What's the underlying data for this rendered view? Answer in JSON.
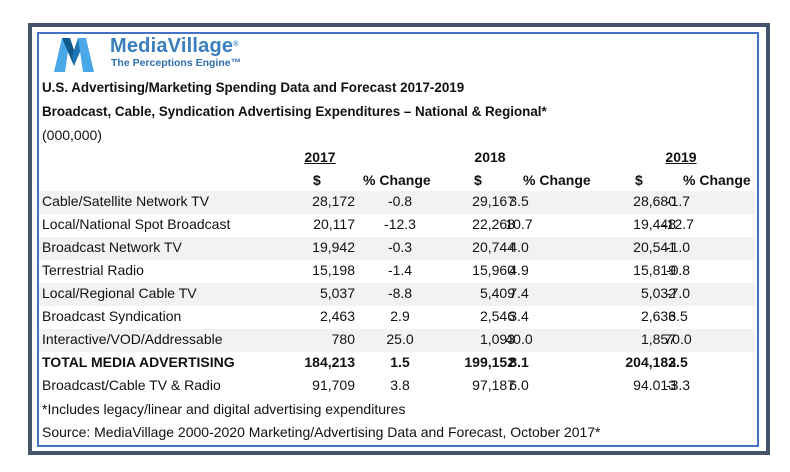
{
  "logo": {
    "brand": "MediaVillage",
    "registered_mark": "®",
    "tagline": "The Perceptions Engine™",
    "colors": {
      "light": "#4aa8e8",
      "dark": "#0e5a8c",
      "text": "#3a7fbd"
    }
  },
  "title_line1": "U.S. Advertising/Marketing Spending Data and Forecast 2017-2019",
  "title_line2": "Broadcast, Cable, Syndication Advertising Expenditures – National & Regional*",
  "units": "(000,000)",
  "years": [
    {
      "label": "2017",
      "underlined": true
    },
    {
      "label": "2018",
      "underlined": false
    },
    {
      "label": "2019",
      "underlined": true
    }
  ],
  "column_headers": {
    "dollars": "$",
    "pct_change": "% Change"
  },
  "rows": [
    {
      "label": "Cable/Satellite Network TV",
      "v2017": "28,172",
      "p2017": "-0.8",
      "v2018": "29,167",
      "p2018": "3.5",
      "v2019": "28,680",
      "p2019": "-1.7",
      "bold": false,
      "banded": true
    },
    {
      "label": "Local/National Spot Broadcast",
      "v2017": "20,117",
      "p2017": "-12.3",
      "v2018": "22,268",
      "p2018": "10.7",
      "v2019": "19,448",
      "p2019": "-12.7",
      "bold": false,
      "banded": false
    },
    {
      "label": "Broadcast Network TV",
      "v2017": "19,942",
      "p2017": "-0.3",
      "v2018": "20,744",
      "p2018": "4.0",
      "v2019": "20,541",
      "p2019": "-1.0",
      "bold": false,
      "banded": true
    },
    {
      "label": "Terrestrial Radio",
      "v2017": "15,198",
      "p2017": "-1.4",
      "v2018": "15,960",
      "p2018": "4.9",
      "v2019": "15,819",
      "p2019": "-0.8",
      "bold": false,
      "banded": false
    },
    {
      "label": "Local/Regional Cable TV",
      "v2017": "5,037",
      "p2017": "-8.8",
      "v2018": "5,409",
      "p2018": "7.4",
      "v2019": "5,032",
      "p2019": "-7.0",
      "bold": false,
      "banded": true
    },
    {
      "label": "Broadcast Syndication",
      "v2017": "2,463",
      "p2017": "2.9",
      "v2018": "2,546",
      "p2018": "3.4",
      "v2019": "2,636",
      "p2019": "3.5",
      "bold": false,
      "banded": false
    },
    {
      "label": "Interactive/VOD/Addressable",
      "v2017": "780",
      "p2017": "25.0",
      "v2018": "1,093",
      "p2018": "40.0",
      "v2019": "1,857",
      "p2019": "70.0",
      "bold": false,
      "banded": true
    },
    {
      "label": "TOTAL MEDIA ADVERTISING",
      "v2017": "184,213",
      "p2017": "1.5",
      "v2018": "199,152",
      "p2018": "8.1",
      "v2019": "204,183",
      "p2019": "2.5",
      "bold": true,
      "banded": false
    },
    {
      "label": "Broadcast/Cable TV & Radio",
      "v2017": "91,709",
      "p2017": "3.8",
      "v2018": "97,187",
      "p2018": "6.0",
      "v2019": "94.013",
      "p2019": "-3.3",
      "bold": false,
      "banded": false
    }
  ],
  "footnote": "*Includes legacy/linear and digital advertising expenditures",
  "source": "Source: MediaVillage 2000-2020 Marketing/Advertising Data and Forecast, October 2017*",
  "colors": {
    "outer_border": "#44546a",
    "inner_border": "#4472c4",
    "band": "#f2f2f2"
  }
}
